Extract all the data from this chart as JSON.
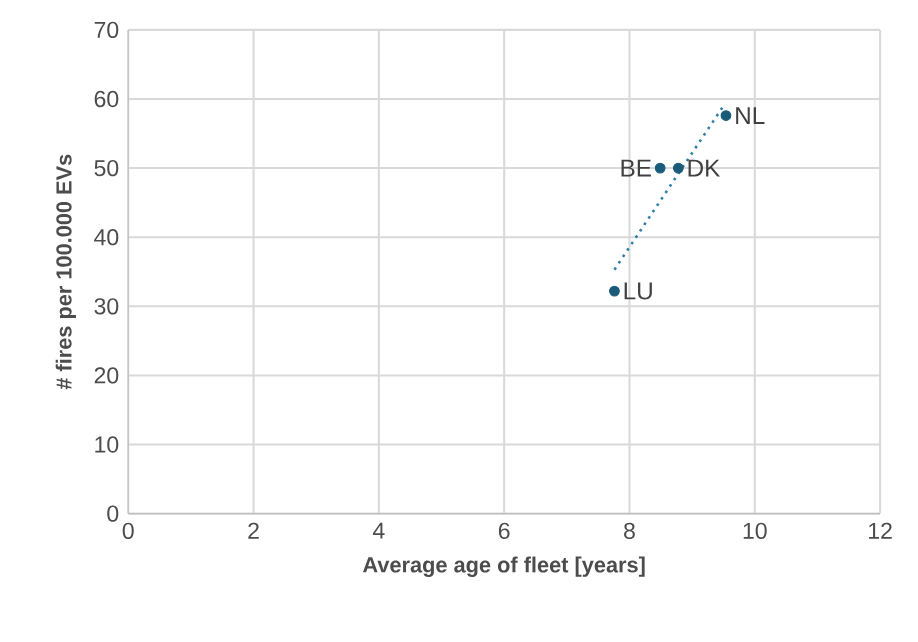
{
  "chart_data": {
    "type": "scatter",
    "xlabel": "Average age of fleet [years]",
    "ylabel": "# fires per 100.000 EVs",
    "xlim": [
      0,
      12
    ],
    "ylim": [
      0,
      70
    ],
    "xticks": [
      0,
      2,
      4,
      6,
      8,
      10,
      12
    ],
    "yticks": [
      0,
      10,
      20,
      30,
      40,
      50,
      60,
      70
    ],
    "grid": true,
    "series": [
      {
        "color": "#1b5b7a",
        "marker": "circle",
        "x": [
          7.76,
          8.49,
          8.78,
          9.54
        ],
        "values": [
          32.2,
          50,
          50,
          57.6
        ]
      },
      {
        "type": "line",
        "color": "#2e7ea6",
        "marker": "none",
        "line_style": "dotted",
        "x": [
          7.76,
          9.5
        ],
        "values": [
          35.3,
          59
        ]
      }
    ],
    "annotations": [
      {
        "text": "LU",
        "x": 7.76,
        "y": 32.2
      },
      {
        "text": "BE",
        "x": 8.49,
        "y": 50
      },
      {
        "text": "DK",
        "x": 8.78,
        "y": 50
      },
      {
        "text": "NL",
        "x": 9.54,
        "y": 57.6
      }
    ]
  }
}
